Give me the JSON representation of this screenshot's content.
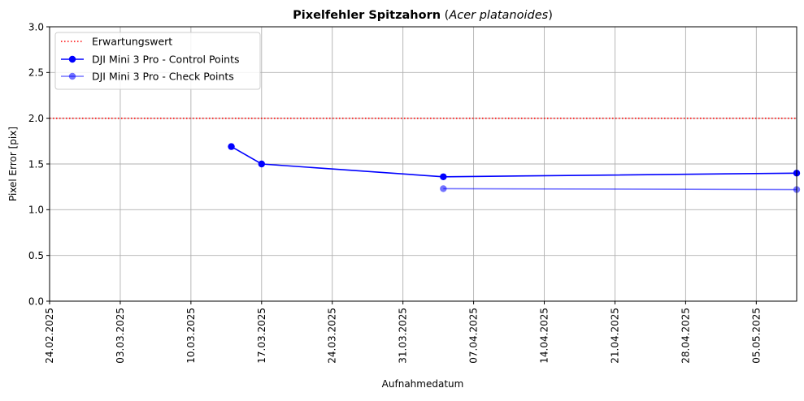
{
  "chart_data": {
    "type": "line",
    "title_bold": "Pixelfehler Spitzahorn",
    "title_italic": "Acer platanoides",
    "xlabel": "Aufnahmedatum",
    "ylabel": "Pixel Error [pix]",
    "xlim": [
      "2025-02-24",
      "2025-05-09"
    ],
    "ylim": [
      0,
      3.0
    ],
    "grid": true,
    "legend_position": "upper-left",
    "x_ticks": [
      {
        "date": "2025-02-24",
        "label": "24.02.2025"
      },
      {
        "date": "2025-03-03",
        "label": "03.03.2025"
      },
      {
        "date": "2025-03-10",
        "label": "10.03.2025"
      },
      {
        "date": "2025-03-17",
        "label": "17.03.2025"
      },
      {
        "date": "2025-03-24",
        "label": "24.03.2025"
      },
      {
        "date": "2025-03-31",
        "label": "31.03.2025"
      },
      {
        "date": "2025-04-07",
        "label": "07.04.2025"
      },
      {
        "date": "2025-04-14",
        "label": "14.04.2025"
      },
      {
        "date": "2025-04-21",
        "label": "21.04.2025"
      },
      {
        "date": "2025-04-28",
        "label": "28.04.2025"
      },
      {
        "date": "2025-05-05",
        "label": "05.05.2025"
      }
    ],
    "y_ticks": [
      {
        "value": 0.0,
        "label": "0.0"
      },
      {
        "value": 0.5,
        "label": "0.5"
      },
      {
        "value": 1.0,
        "label": "1.0"
      },
      {
        "value": 1.5,
        "label": "1.5"
      },
      {
        "value": 2.0,
        "label": "2.0"
      },
      {
        "value": 2.5,
        "label": "2.5"
      },
      {
        "value": 3.0,
        "label": "3.0"
      }
    ],
    "reference_line": {
      "name": "Erwartungswert",
      "value": 2.0,
      "color": "#ff0000",
      "style": "dotted"
    },
    "series": [
      {
        "name": "DJI Mini 3 Pro - Control Points",
        "color": "#0000ff",
        "opacity": 1.0,
        "points": [
          {
            "x": "2025-03-14",
            "y": 1.69
          },
          {
            "x": "2025-03-17",
            "y": 1.5
          },
          {
            "x": "2025-04-04",
            "y": 1.36
          },
          {
            "x": "2025-05-09",
            "y": 1.4
          }
        ]
      },
      {
        "name": "DJI Mini 3 Pro - Check Points",
        "color": "#0000ff",
        "opacity": 0.55,
        "points": [
          {
            "x": "2025-04-04",
            "y": 1.23
          },
          {
            "x": "2025-05-09",
            "y": 1.22
          }
        ]
      }
    ]
  }
}
